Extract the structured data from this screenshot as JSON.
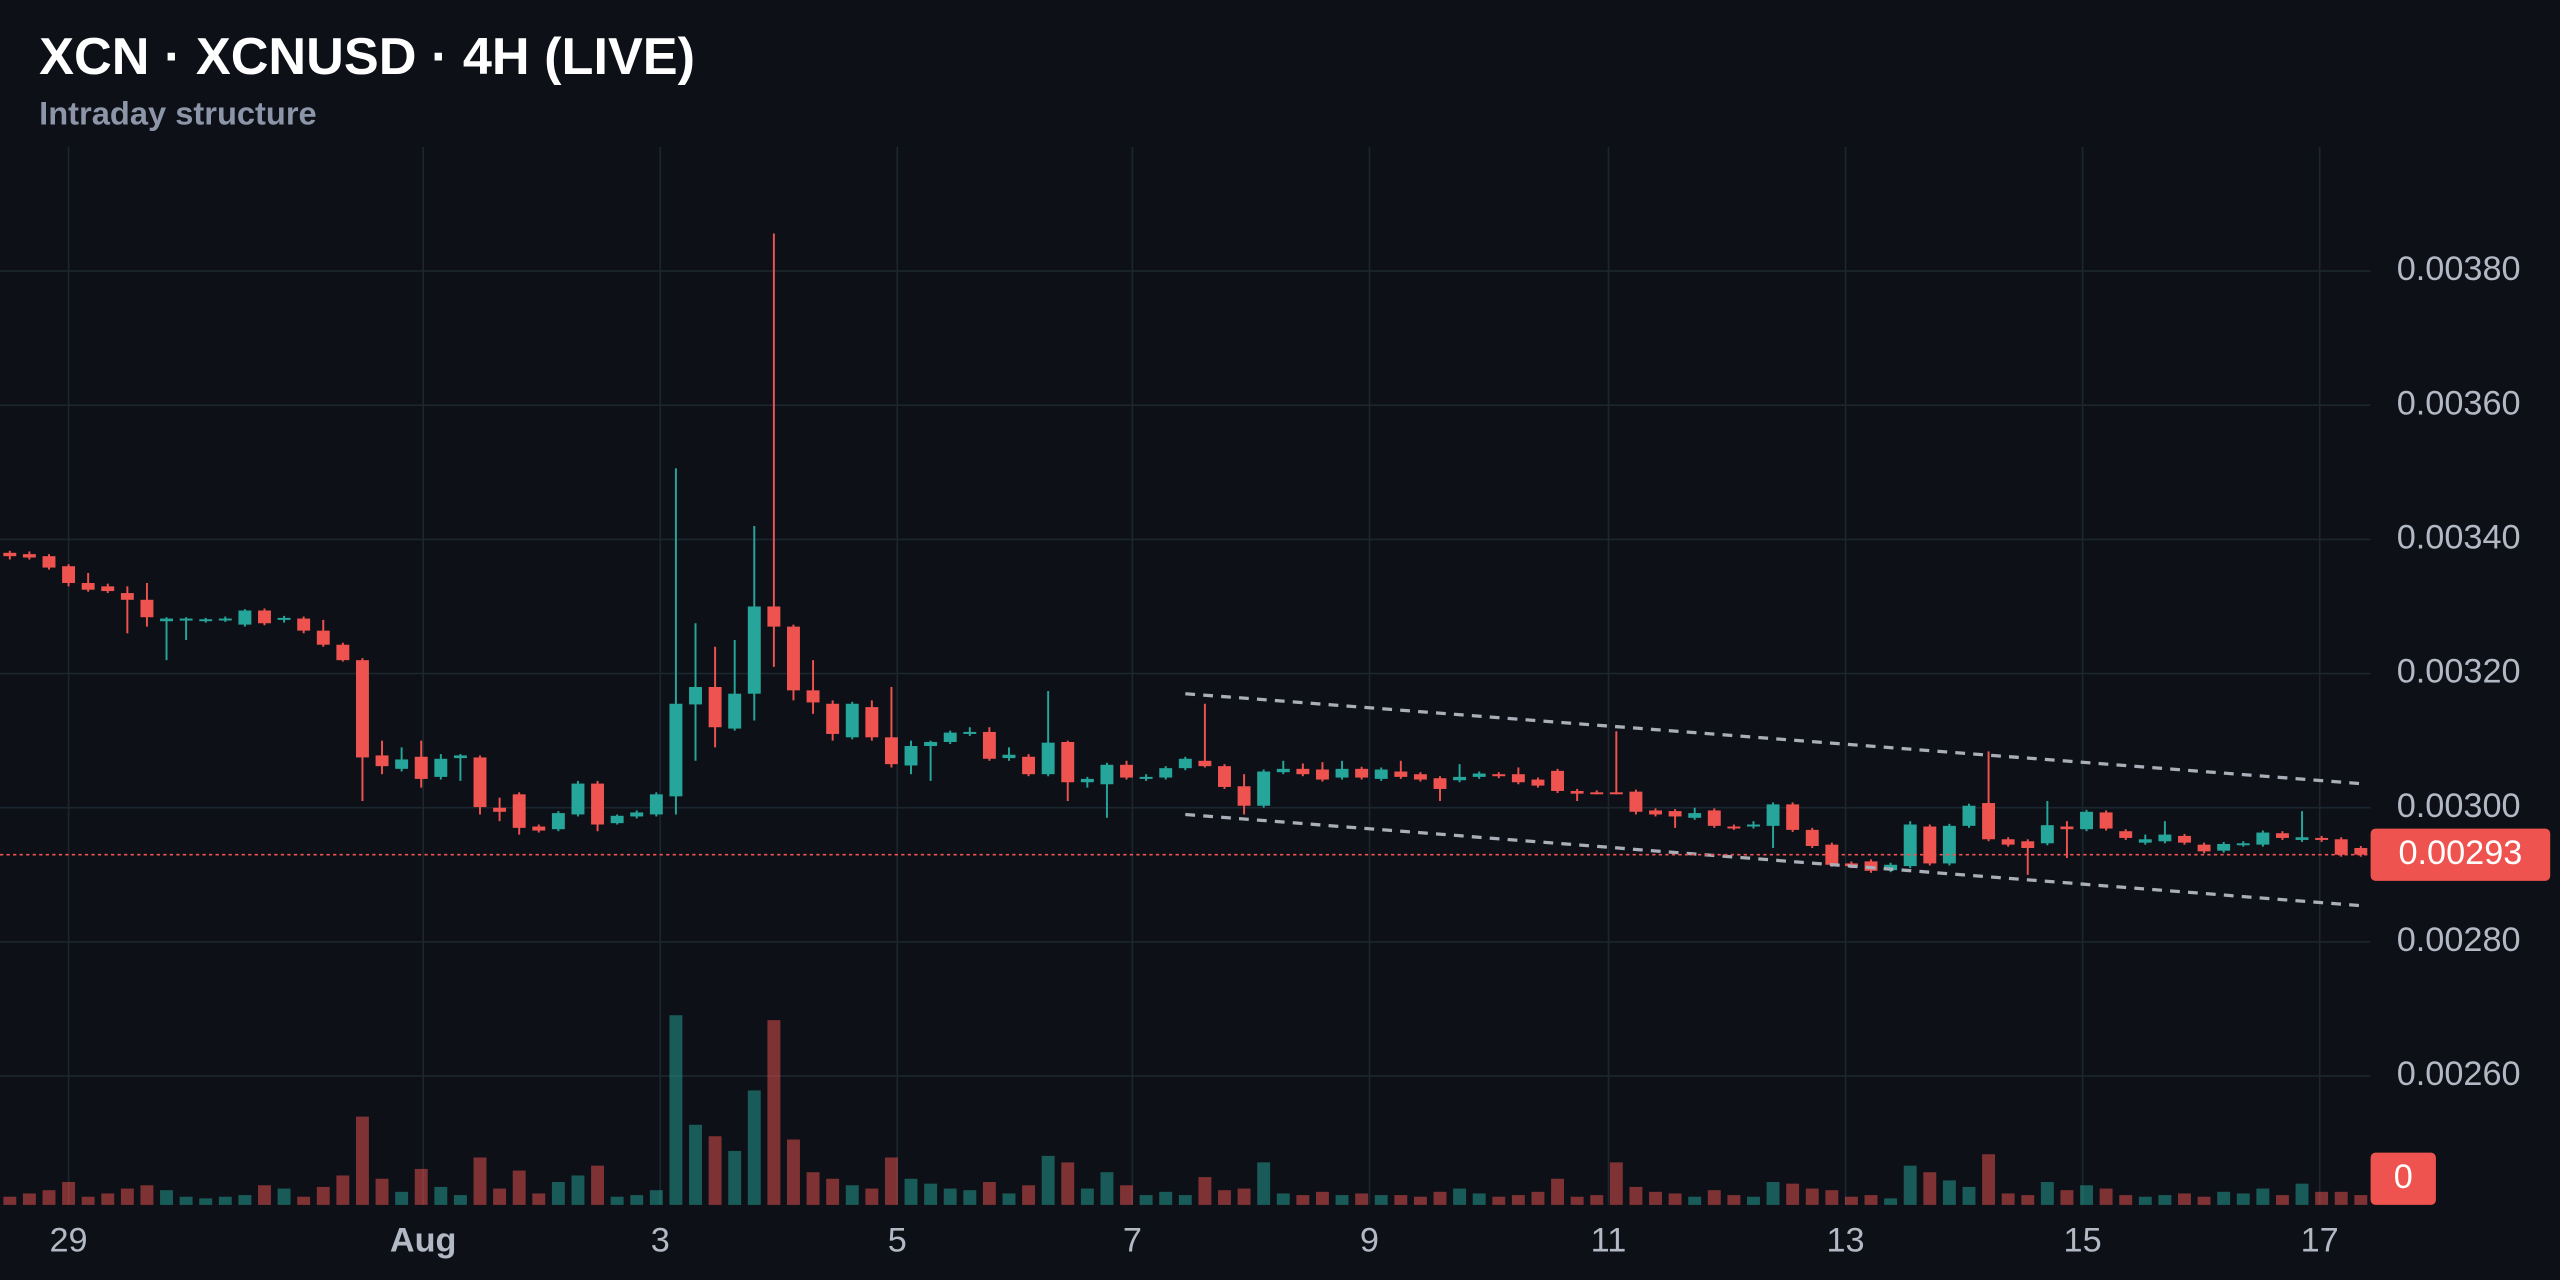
{
  "chart_data": {
    "type": "candlestick",
    "title": "XCN · XCNUSD · 4H (LIVE)",
    "subtitle": "Intraday structure",
    "up_color": "#26a69a",
    "down_color": "#ef5350",
    "grid": true,
    "candles": {
      "open": [
        0.00338,
        0.003378,
        0.003375,
        0.00336,
        0.003335,
        0.00333,
        0.00332,
        0.00331,
        0.003278,
        0.003279,
        0.00328,
        0.00328,
        0.003273,
        0.003294,
        0.00328,
        0.003282,
        0.003264,
        0.003243,
        0.00322,
        0.003078,
        0.003058,
        0.003076,
        0.003046,
        0.003074,
        0.003075,
        0.003,
        0.00302,
        0.002972,
        0.002968,
        0.00299,
        0.003036,
        0.002977,
        0.002987,
        0.00299,
        0.003017,
        0.003154,
        0.00318,
        0.003118,
        0.00317,
        0.0033,
        0.00327,
        0.003175,
        0.003155,
        0.003105,
        0.00315,
        0.003105,
        0.003063,
        0.003092,
        0.003098,
        0.00311,
        0.003113,
        0.003074,
        0.003076,
        0.00305,
        0.003098,
        0.003038,
        0.003035,
        0.003064,
        0.003043,
        0.003045,
        0.003059,
        0.00307,
        0.003062,
        0.003032,
        0.003003,
        0.003053,
        0.003058,
        0.003057,
        0.003045,
        0.003058,
        0.003043,
        0.003054,
        0.00305,
        0.003044,
        0.003041,
        0.003046,
        0.00305,
        0.00305,
        0.003042,
        0.003055,
        0.003025,
        0.003023,
        0.003023,
        0.003024,
        0.002996,
        0.002995,
        0.002985,
        0.002996,
        0.002972,
        0.002972,
        0.002973,
        0.003005,
        0.002967,
        0.002945,
        0.002917,
        0.00292,
        0.002907,
        0.002913,
        0.002972,
        0.002917,
        0.002973,
        0.003007,
        0.002953,
        0.00295,
        0.002947,
        0.002972,
        0.002968,
        0.002993,
        0.002965,
        0.002948,
        0.00295,
        0.002958,
        0.002945,
        0.002936,
        0.002945,
        0.002945,
        0.002962,
        0.002952,
        0.002955,
        0.002953,
        0.00294
      ],
      "high": [
        0.003383,
        0.003382,
        0.003378,
        0.003363,
        0.00335,
        0.003334,
        0.00333,
        0.003335,
        0.003284,
        0.003284,
        0.003283,
        0.003285,
        0.003296,
        0.003297,
        0.003286,
        0.003285,
        0.00328,
        0.003246,
        0.003223,
        0.0031,
        0.00309,
        0.0031,
        0.00308,
        0.00308,
        0.003078,
        0.003015,
        0.003023,
        0.002975,
        0.002995,
        0.00304,
        0.00304,
        0.00299,
        0.002996,
        0.003023,
        0.003506,
        0.003275,
        0.00324,
        0.00325,
        0.00342,
        0.003856,
        0.003273,
        0.00322,
        0.00316,
        0.003158,
        0.00316,
        0.00318,
        0.0031,
        0.0031,
        0.003115,
        0.00312,
        0.00312,
        0.00309,
        0.00308,
        0.003174,
        0.0031,
        0.003046,
        0.003067,
        0.00307,
        0.00305,
        0.003062,
        0.003076,
        0.003155,
        0.003065,
        0.00305,
        0.003057,
        0.00307,
        0.003066,
        0.003068,
        0.00307,
        0.003061,
        0.00306,
        0.00307,
        0.003053,
        0.003047,
        0.003065,
        0.003054,
        0.003053,
        0.00306,
        0.003045,
        0.003058,
        0.003028,
        0.003026,
        0.003114,
        0.003027,
        0.002999,
        0.002998,
        0.003,
        0.002999,
        0.002975,
        0.00298,
        0.003008,
        0.003008,
        0.00297,
        0.002948,
        0.00292,
        0.002923,
        0.002918,
        0.00298,
        0.002975,
        0.002976,
        0.003006,
        0.003084,
        0.002956,
        0.002953,
        0.00301,
        0.00298,
        0.002997,
        0.002996,
        0.002968,
        0.00296,
        0.00298,
        0.002961,
        0.002948,
        0.002949,
        0.00295,
        0.002966,
        0.002965,
        0.002995,
        0.002958,
        0.002956,
        0.002943
      ],
      "low": [
        0.00337,
        0.00337,
        0.003355,
        0.00333,
        0.003322,
        0.00332,
        0.00326,
        0.00327,
        0.00322,
        0.00325,
        0.003276,
        0.003277,
        0.00327,
        0.003272,
        0.003276,
        0.00326,
        0.00324,
        0.003218,
        0.00301,
        0.00305,
        0.003054,
        0.00303,
        0.003042,
        0.00304,
        0.00299,
        0.00298,
        0.00296,
        0.002963,
        0.002965,
        0.002987,
        0.002965,
        0.002975,
        0.002984,
        0.002987,
        0.00299,
        0.00307,
        0.00309,
        0.003115,
        0.00313,
        0.00321,
        0.00316,
        0.00314,
        0.0031,
        0.003102,
        0.0031,
        0.00306,
        0.00305,
        0.00304,
        0.003095,
        0.003107,
        0.00307,
        0.00307,
        0.003047,
        0.003047,
        0.00301,
        0.00303,
        0.002985,
        0.003042,
        0.00304,
        0.003042,
        0.003056,
        0.00306,
        0.003028,
        0.00299,
        0.003,
        0.00305,
        0.003047,
        0.003039,
        0.003042,
        0.003042,
        0.00304,
        0.003043,
        0.003039,
        0.00301,
        0.003038,
        0.003043,
        0.003044,
        0.003035,
        0.00303,
        0.003022,
        0.00301,
        0.00302,
        0.00302,
        0.00299,
        0.002987,
        0.00297,
        0.002982,
        0.00297,
        0.002967,
        0.002969,
        0.00294,
        0.002964,
        0.00294,
        0.002912,
        0.00291,
        0.002903,
        0.002904,
        0.00291,
        0.002914,
        0.002914,
        0.00297,
        0.00295,
        0.002942,
        0.0029,
        0.002944,
        0.002925,
        0.002965,
        0.002966,
        0.002952,
        0.002945,
        0.002947,
        0.002945,
        0.002932,
        0.002933,
        0.002942,
        0.002942,
        0.002952,
        0.002949,
        0.002949,
        0.002927,
        0.002927
      ],
      "close": [
        0.003375,
        0.003373,
        0.003358,
        0.003335,
        0.003325,
        0.003323,
        0.00331,
        0.003284,
        0.003282,
        0.003282,
        0.003281,
        0.003282,
        0.003294,
        0.003275,
        0.003283,
        0.003264,
        0.003243,
        0.00322,
        0.003075,
        0.003062,
        0.003072,
        0.003043,
        0.003073,
        0.003078,
        0.003001,
        0.002994,
        0.00297,
        0.002966,
        0.002992,
        0.003036,
        0.002975,
        0.002988,
        0.002993,
        0.00302,
        0.003155,
        0.00318,
        0.00312,
        0.00317,
        0.0033,
        0.00327,
        0.003175,
        0.003157,
        0.00311,
        0.003155,
        0.003105,
        0.003065,
        0.003092,
        0.003098,
        0.003112,
        0.003113,
        0.003073,
        0.003079,
        0.00305,
        0.003097,
        0.003038,
        0.003043,
        0.003064,
        0.003045,
        0.003046,
        0.003059,
        0.003073,
        0.003062,
        0.003031,
        0.003003,
        0.003054,
        0.003058,
        0.00305,
        0.003042,
        0.003058,
        0.003045,
        0.003057,
        0.003046,
        0.003042,
        0.003028,
        0.003046,
        0.003051,
        0.003047,
        0.003038,
        0.003033,
        0.003025,
        0.003021,
        0.003022,
        0.003021,
        0.002994,
        0.00299,
        0.002987,
        0.002992,
        0.002973,
        0.00297,
        0.002975,
        0.003005,
        0.002967,
        0.002943,
        0.002915,
        0.002913,
        0.002906,
        0.002915,
        0.002975,
        0.002917,
        0.002973,
        0.003003,
        0.002953,
        0.002945,
        0.00294,
        0.002974,
        0.002968,
        0.002994,
        0.002969,
        0.002955,
        0.002953,
        0.00296,
        0.002948,
        0.002935,
        0.002946,
        0.002947,
        0.002963,
        0.002955,
        0.002956,
        0.002952,
        0.00293,
        0.00293
      ]
    },
    "volume": {
      "axis": "y2",
      "values": [
        5,
        7,
        9,
        14,
        5,
        7,
        10,
        12,
        9,
        5,
        4,
        5,
        6,
        12,
        10,
        5,
        11,
        18,
        54,
        16,
        8,
        22,
        11,
        6,
        29,
        10,
        21,
        7,
        14,
        18,
        24,
        5,
        6,
        9,
        116,
        49,
        42,
        33,
        70,
        113,
        40,
        20,
        16,
        12,
        10,
        29,
        16,
        13,
        10,
        9,
        14,
        7,
        12,
        30,
        26,
        10,
        20,
        12,
        6,
        8,
        6,
        17,
        9,
        10,
        26,
        7,
        6,
        8,
        6,
        7,
        6,
        6,
        5,
        8,
        10,
        7,
        5,
        6,
        8,
        16,
        5,
        6,
        26,
        11,
        8,
        7,
        5,
        9,
        6,
        5,
        14,
        13,
        10,
        9,
        5,
        6,
        4,
        24,
        20,
        15,
        11,
        31,
        7,
        6,
        14,
        9,
        12,
        10,
        6,
        5,
        6,
        7,
        5,
        8,
        7,
        10,
        6,
        13,
        8,
        8,
        6
      ]
    },
    "xlim": [
      -0.5,
      120.5
    ],
    "xticks": [
      {
        "value": 3,
        "label": "29"
      },
      {
        "value": 21.1,
        "label": "Aug"
      },
      {
        "value": 33.2,
        "label": "3"
      },
      {
        "value": 45.3,
        "label": "5"
      },
      {
        "value": 57.3,
        "label": "7"
      },
      {
        "value": 69.4,
        "label": "9"
      },
      {
        "value": 81.6,
        "label": "11"
      },
      {
        "value": 93.7,
        "label": "13"
      },
      {
        "value": 105.8,
        "label": "15"
      },
      {
        "value": 117.9,
        "label": "17"
      }
    ],
    "ylim": [
      0.002408,
      0.003985
    ],
    "yticks": [
      {
        "value": 0.0026,
        "label": "0.00260"
      },
      {
        "value": 0.0028,
        "label": "0.00280"
      },
      {
        "value": 0.003,
        "label": "0.00300"
      },
      {
        "value": 0.0032,
        "label": "0.00320"
      },
      {
        "value": 0.0034,
        "label": "0.00340"
      },
      {
        "value": 0.0036,
        "label": "0.00360"
      },
      {
        "value": 0.0038,
        "label": "0.00380"
      }
    ],
    "y2lim": [
      0,
      647
    ],
    "y2ticks": [
      0
    ],
    "last_price": {
      "value": 0.00293,
      "label": "0.00293"
    },
    "trendlines": [
      {
        "x": [
          60,
          120
        ],
        "y": [
          0.00317,
          0.003036
        ]
      },
      {
        "x": [
          60,
          120
        ],
        "y": [
          0.00299,
          0.002854
        ]
      }
    ]
  }
}
